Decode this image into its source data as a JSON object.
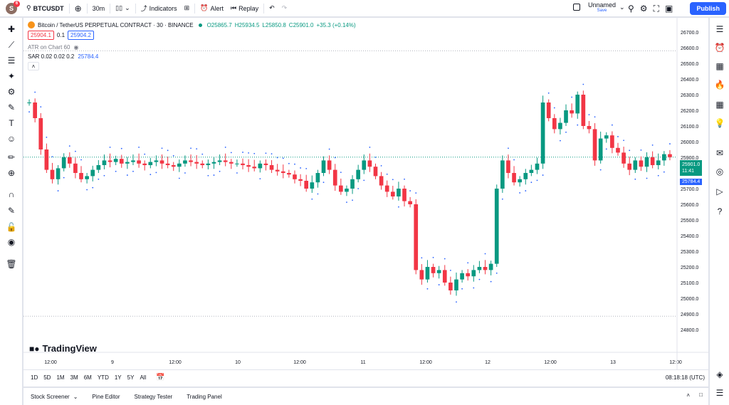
{
  "topbar": {
    "avatar_letter": "S",
    "notif_count": "6",
    "symbol": "BTCUSDT",
    "interval": "30m",
    "indicators": "Indicators",
    "alert": "Alert",
    "replay": "Replay",
    "layout_name": "Unnamed",
    "save_label": "Save",
    "publish": "Publish"
  },
  "legend": {
    "title": "Bitcoin / TetherUS PERPETUAL CONTRACT · 30 · BINANCE",
    "o": "O25865.7",
    "h": "H25934.5",
    "l": "L25850.8",
    "c": "C25901.0",
    "chg": "+35.3 (+0.14%)",
    "sell": "25904.1",
    "spread": "0.1",
    "buy": "25904.2",
    "atr": "ATR on Chart 60",
    "sar_label": "SAR 0.02 0.02 0.2",
    "sar_value": "25784.4"
  },
  "brand": "TradingView",
  "price_axis": {
    "ticks": [
      "26700.0",
      "26600.0",
      "26500.0",
      "26400.0",
      "26300.0",
      "26200.0",
      "26100.0",
      "26000.0",
      "25900.0",
      "25800.0",
      "25700.0",
      "25600.0",
      "25500.0",
      "25400.0",
      "25300.0",
      "25200.0",
      "25100.0",
      "25000.0",
      "24900.0",
      "24800.0"
    ],
    "last_price": "25901.0",
    "countdown": "11:41",
    "sar_tag": "25784.4"
  },
  "time_axis": [
    "12:00",
    "9",
    "12:00",
    "10",
    "12:00",
    "11",
    "12:00",
    "12",
    "12:00",
    "13",
    "12:00"
  ],
  "ranges": [
    "1D",
    "5D",
    "1M",
    "3M",
    "6M",
    "YTD",
    "1Y",
    "5Y",
    "All"
  ],
  "clock": "08:18:18 (UTC)",
  "panels": [
    "Stock Screener",
    "Pine Editor",
    "Strategy Tester",
    "Trading Panel"
  ],
  "colors": {
    "up": "#089981",
    "down": "#f23645",
    "sar": "#2962ff",
    "accent": "#2962ff"
  },
  "chart_data": {
    "type": "candlestick",
    "symbol": "BTCUSDT",
    "interval": "30",
    "ylim": [
      24750,
      26750
    ],
    "y_tick_step": 100,
    "x_labels": [
      "12:00",
      "9",
      "12:00",
      "10",
      "12:00",
      "11",
      "12:00",
      "12",
      "12:00",
      "13",
      "12:00"
    ],
    "last_close": 25901.0,
    "sar_last": 25784.4
  }
}
